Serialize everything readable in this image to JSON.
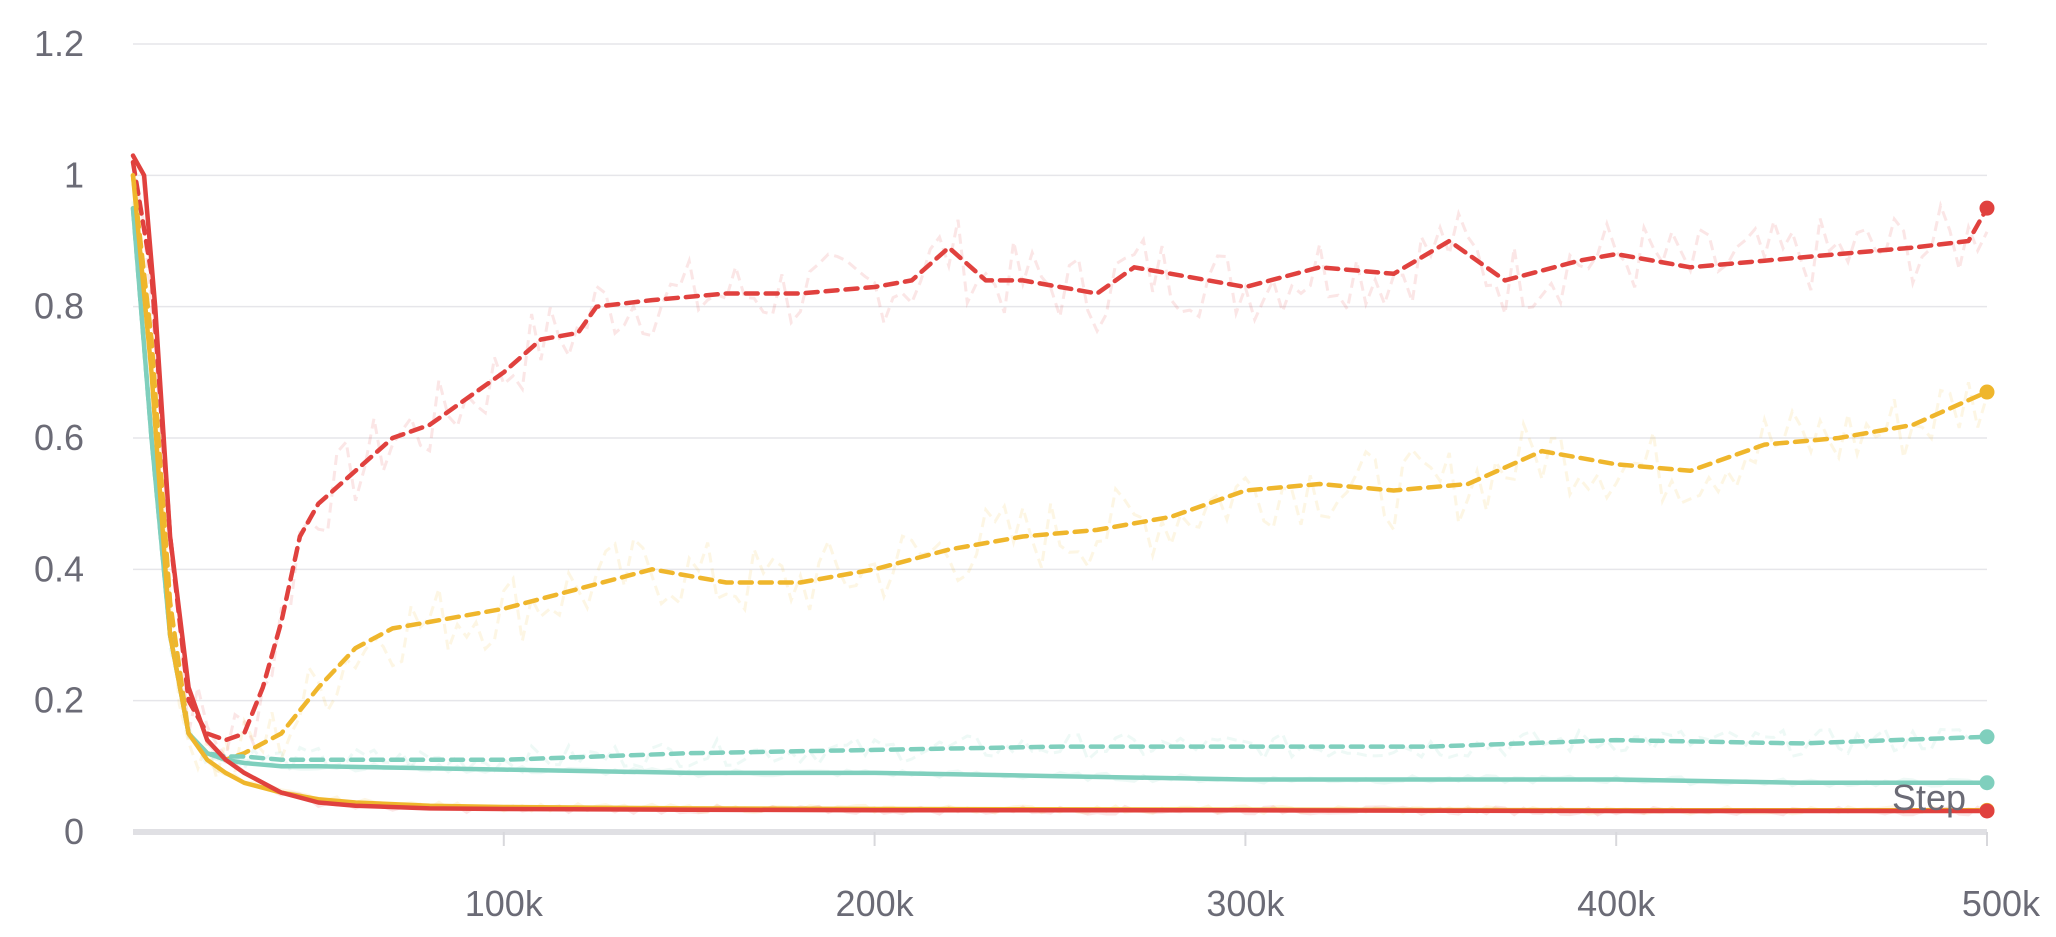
{
  "chart_data": {
    "type": "line",
    "title": "",
    "xlabel": "Step",
    "ylabel": "",
    "xlim": [
      0,
      500000
    ],
    "ylim": [
      0,
      1.2
    ],
    "x_ticks": [
      {
        "value": 100000,
        "label": "100k"
      },
      {
        "value": 200000,
        "label": "200k"
      },
      {
        "value": 300000,
        "label": "300k"
      },
      {
        "value": 400000,
        "label": "400k"
      },
      {
        "value": 500000,
        "label": "500k"
      }
    ],
    "y_ticks": [
      {
        "value": 0,
        "label": "0"
      },
      {
        "value": 0.2,
        "label": "0.2"
      },
      {
        "value": 0.4,
        "label": "0.4"
      },
      {
        "value": 0.6,
        "label": "0.6"
      },
      {
        "value": 0.8,
        "label": "0.8"
      },
      {
        "value": 1.0,
        "label": "1"
      },
      {
        "value": 1.2,
        "label": "1.2"
      }
    ],
    "grid": true,
    "legend": "none",
    "series": [
      {
        "color": "#e0413e",
        "dash": true,
        "x": [
          0,
          5000,
          10000,
          15000,
          20000,
          25000,
          30000,
          35000,
          40000,
          45000,
          50000,
          60000,
          70000,
          80000,
          90000,
          100000,
          110000,
          120000,
          125000,
          140000,
          160000,
          180000,
          200000,
          210000,
          220000,
          230000,
          240000,
          250000,
          260000,
          270000,
          280000,
          300000,
          320000,
          340000,
          355000,
          370000,
          390000,
          400000,
          420000,
          440000,
          460000,
          480000,
          495000,
          500000
        ],
        "values": [
          1.02,
          0.85,
          0.45,
          0.2,
          0.15,
          0.14,
          0.15,
          0.22,
          0.32,
          0.45,
          0.5,
          0.55,
          0.6,
          0.62,
          0.66,
          0.7,
          0.75,
          0.76,
          0.8,
          0.81,
          0.82,
          0.82,
          0.83,
          0.84,
          0.89,
          0.84,
          0.84,
          0.83,
          0.82,
          0.86,
          0.85,
          0.83,
          0.86,
          0.85,
          0.9,
          0.84,
          0.87,
          0.88,
          0.86,
          0.87,
          0.88,
          0.89,
          0.9,
          0.95
        ]
      },
      {
        "color": "#efb62c",
        "dash": true,
        "x": [
          0,
          5000,
          10000,
          15000,
          20000,
          25000,
          30000,
          40000,
          50000,
          60000,
          70000,
          80000,
          100000,
          120000,
          140000,
          160000,
          180000,
          200000,
          220000,
          240000,
          260000,
          280000,
          300000,
          320000,
          340000,
          360000,
          380000,
          400000,
          420000,
          440000,
          460000,
          480000,
          500000
        ],
        "values": [
          1.0,
          0.75,
          0.35,
          0.15,
          0.12,
          0.11,
          0.12,
          0.15,
          0.22,
          0.28,
          0.31,
          0.32,
          0.34,
          0.37,
          0.4,
          0.38,
          0.38,
          0.4,
          0.43,
          0.45,
          0.46,
          0.48,
          0.52,
          0.53,
          0.52,
          0.53,
          0.58,
          0.56,
          0.55,
          0.59,
          0.6,
          0.62,
          0.67
        ]
      },
      {
        "color": "#7fcfbd",
        "dash": true,
        "x": [
          0,
          5000,
          10000,
          15000,
          20000,
          25000,
          30000,
          40000,
          50000,
          100000,
          150000,
          200000,
          250000,
          300000,
          350000,
          400000,
          450000,
          500000
        ],
        "values": [
          0.95,
          0.6,
          0.3,
          0.15,
          0.12,
          0.115,
          0.115,
          0.11,
          0.11,
          0.11,
          0.12,
          0.125,
          0.13,
          0.13,
          0.13,
          0.14,
          0.135,
          0.145
        ]
      },
      {
        "color": "#7fcfbd",
        "dash": false,
        "x": [
          0,
          5000,
          10000,
          15000,
          20000,
          25000,
          30000,
          40000,
          50000,
          100000,
          150000,
          200000,
          250000,
          300000,
          350000,
          400000,
          450000,
          500000
        ],
        "values": [
          0.95,
          0.6,
          0.3,
          0.15,
          0.12,
          0.11,
          0.105,
          0.1,
          0.1,
          0.095,
          0.09,
          0.09,
          0.085,
          0.08,
          0.08,
          0.08,
          0.075,
          0.075
        ]
      },
      {
        "color": "#efb62c",
        "dash": false,
        "x": [
          0,
          5000,
          10000,
          15000,
          20000,
          25000,
          30000,
          40000,
          50000,
          60000,
          80000,
          100000,
          150000,
          200000,
          300000,
          400000,
          500000
        ],
        "values": [
          1.0,
          0.7,
          0.3,
          0.15,
          0.11,
          0.09,
          0.075,
          0.06,
          0.05,
          0.045,
          0.04,
          0.038,
          0.036,
          0.035,
          0.034,
          0.033,
          0.033
        ]
      },
      {
        "color": "#e0413e",
        "dash": false,
        "x": [
          0,
          3000,
          6000,
          10000,
          15000,
          20000,
          25000,
          30000,
          40000,
          50000,
          60000,
          80000,
          100000,
          150000,
          200000,
          300000,
          400000,
          500000
        ],
        "values": [
          1.03,
          1.0,
          0.8,
          0.45,
          0.22,
          0.14,
          0.11,
          0.09,
          0.06,
          0.045,
          0.04,
          0.036,
          0.035,
          0.034,
          0.033,
          0.033,
          0.032,
          0.032
        ]
      }
    ]
  }
}
